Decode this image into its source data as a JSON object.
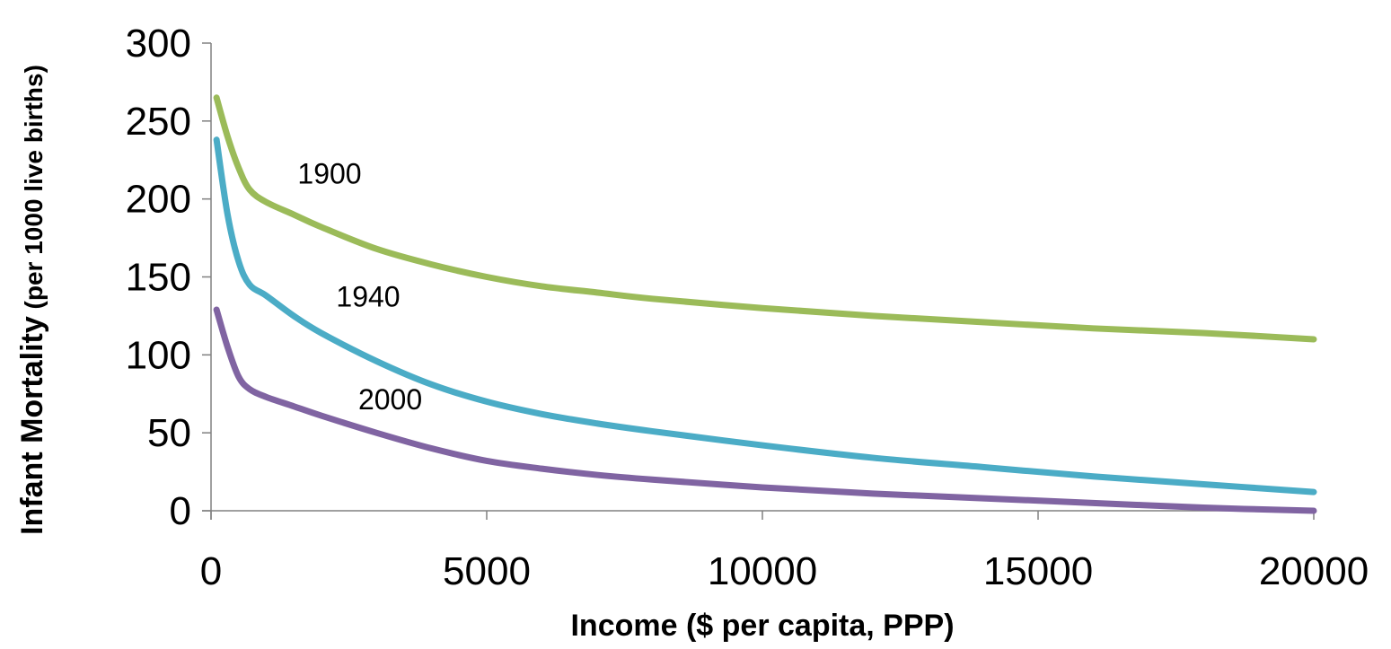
{
  "chart_data": {
    "type": "line",
    "title": "",
    "xlabel": "Income ($ per capita, PPP)",
    "ylabel_main": "Infant Mortality",
    "ylabel_sub": " (per 1000 live births)",
    "xlim": [
      0,
      20000
    ],
    "ylim": [
      0,
      300
    ],
    "x_ticks": [
      0,
      5000,
      10000,
      15000,
      20000
    ],
    "y_ticks": [
      0,
      50,
      100,
      150,
      200,
      250,
      300
    ],
    "grid": false,
    "legend": "none",
    "series": [
      {
        "name": "1900",
        "color": "#9bbb59",
        "x": [
          100,
          300,
          500,
          700,
          1000,
          1500,
          2000,
          3000,
          4000,
          5000,
          6000,
          7000,
          8000,
          10000,
          12000,
          14000,
          16000,
          18000,
          20000
        ],
        "y": [
          265,
          240,
          220,
          206,
          198,
          190,
          182,
          168,
          158,
          150,
          144,
          140,
          136,
          130,
          125,
          121,
          117,
          114,
          110
        ]
      },
      {
        "name": "1940",
        "color": "#4bacc6",
        "x": [
          100,
          300,
          500,
          700,
          1000,
          1500,
          2000,
          3000,
          4000,
          5000,
          6000,
          7000,
          8000,
          10000,
          12000,
          14000,
          16000,
          18000,
          20000
        ],
        "y": [
          238,
          190,
          160,
          145,
          138,
          125,
          114,
          96,
          81,
          70,
          62,
          56,
          51,
          42,
          34,
          28,
          22,
          17,
          12
        ]
      },
      {
        "name": "2000",
        "color": "#8064a2",
        "x": [
          100,
          300,
          500,
          700,
          1000,
          1500,
          2000,
          3000,
          4000,
          5000,
          6000,
          7000,
          8000,
          10000,
          12000,
          14000,
          16000,
          18000,
          20000
        ],
        "y": [
          129,
          105,
          86,
          78,
          73,
          67,
          61,
          50,
          40,
          32,
          27,
          23,
          20,
          15,
          11,
          8,
          5,
          2,
          0
        ]
      }
    ],
    "annotations": [
      {
        "text": "1900",
        "x": 2150,
        "y": 210
      },
      {
        "text": "1940",
        "x": 2850,
        "y": 131
      },
      {
        "text": "2000",
        "x": 3250,
        "y": 65
      }
    ]
  }
}
